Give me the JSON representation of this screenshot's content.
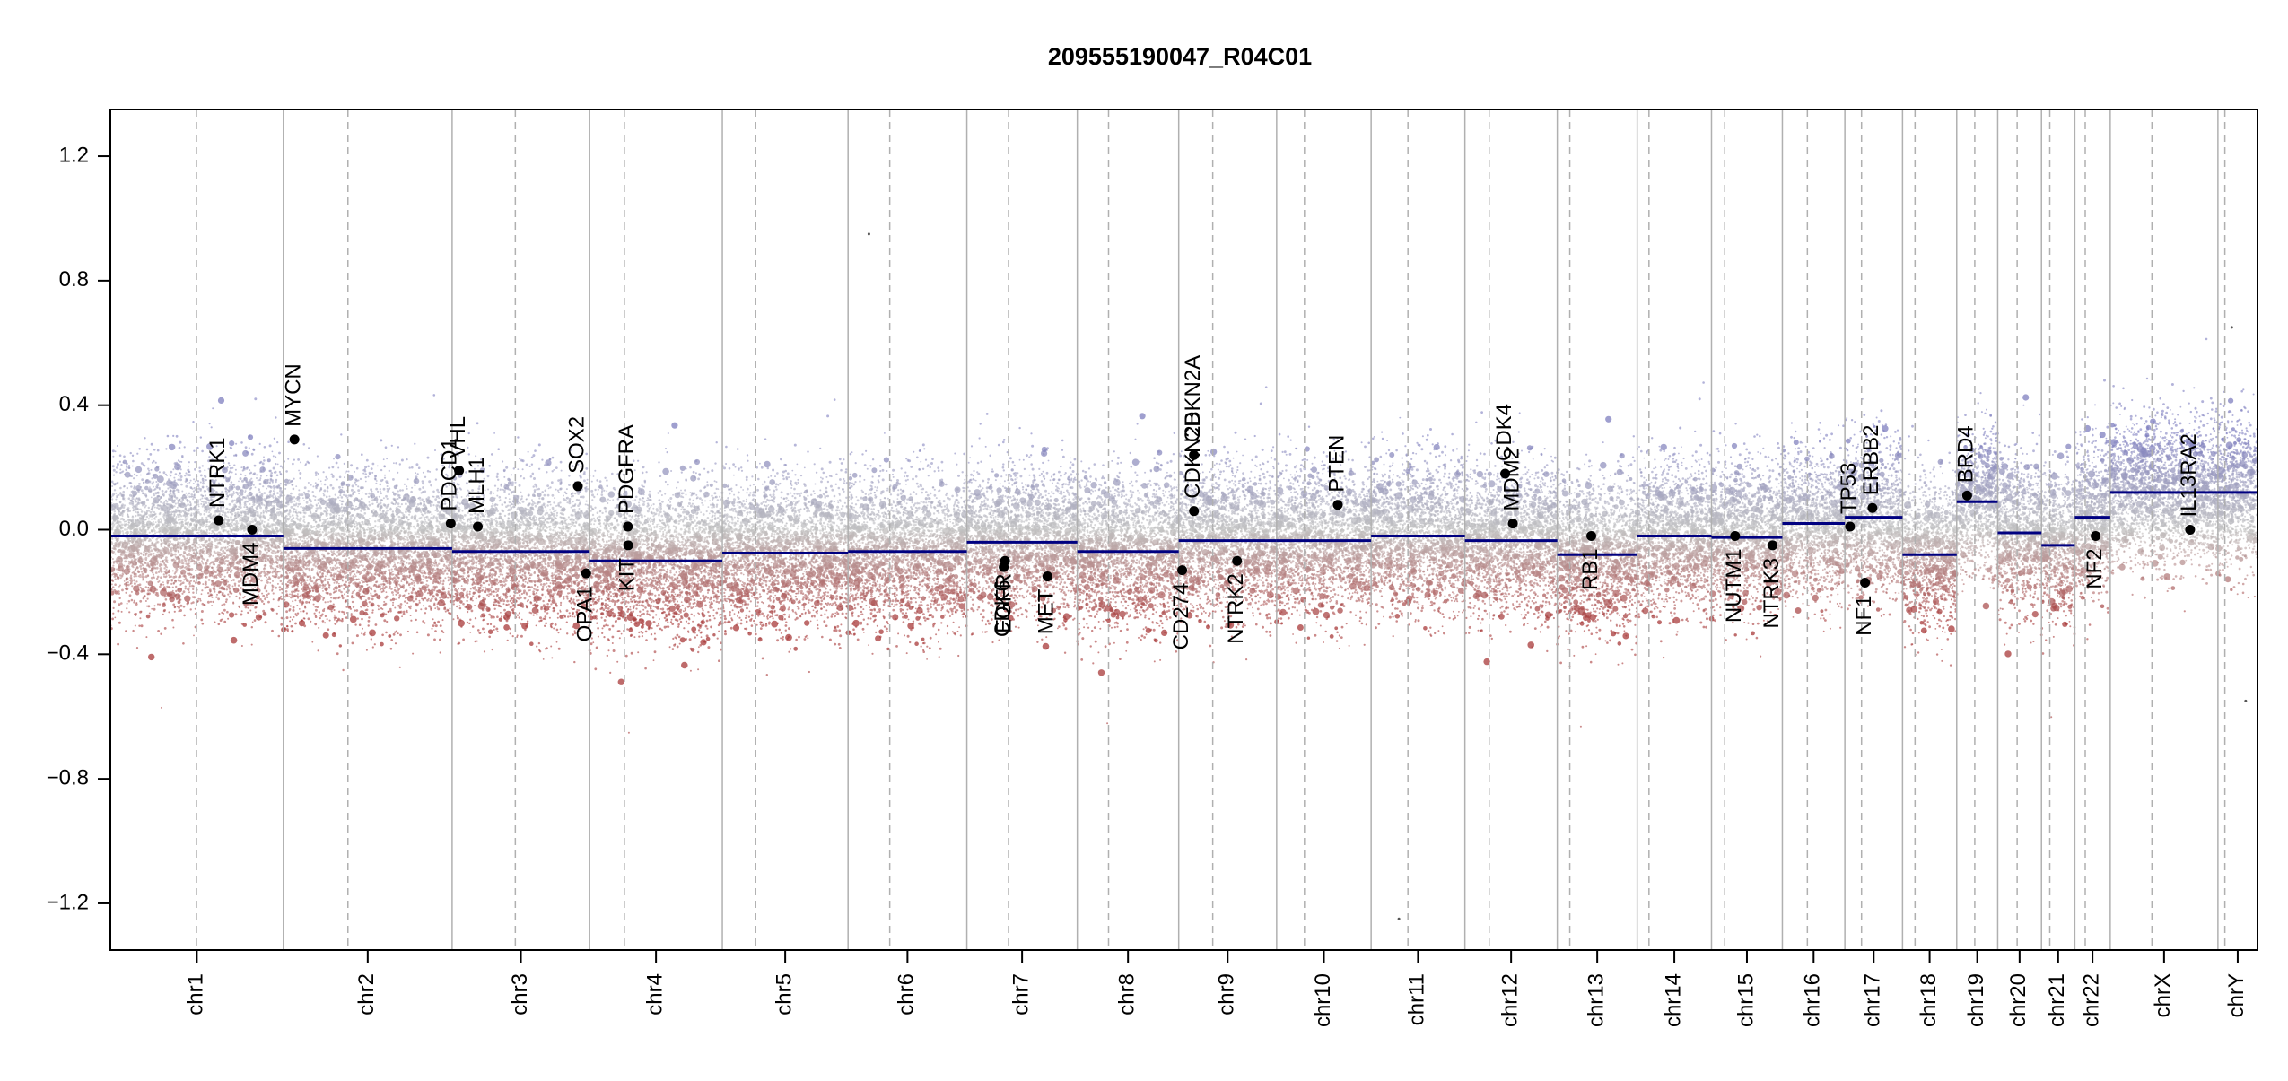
{
  "chart_data": {
    "type": "scatter",
    "title": "209555190047_R04C01",
    "xlabel": "",
    "ylabel": "",
    "ylim": [
      -1.35,
      1.35
    ],
    "yticks": [
      -1.2,
      -0.8,
      -0.4,
      0.0,
      0.4,
      0.8,
      1.2
    ],
    "ytick_labels": [
      "−1.2",
      "−0.8",
      "−0.4",
      "0.0",
      "0.4",
      "0.8",
      "1.2"
    ],
    "x_units": "Mb",
    "chromosomes": [
      {
        "name": "chr1",
        "size": 249,
        "centromere": 124
      },
      {
        "name": "chr2",
        "size": 243,
        "centromere": 93
      },
      {
        "name": "chr3",
        "size": 198,
        "centromere": 91
      },
      {
        "name": "chr4",
        "size": 191,
        "centromere": 50
      },
      {
        "name": "chr5",
        "size": 181,
        "centromere": 48
      },
      {
        "name": "chr6",
        "size": 171,
        "centromere": 60
      },
      {
        "name": "chr7",
        "size": 159,
        "centromere": 60
      },
      {
        "name": "chr8",
        "size": 146,
        "centromere": 45
      },
      {
        "name": "chr9",
        "size": 141,
        "centromere": 49
      },
      {
        "name": "chr10",
        "size": 136,
        "centromere": 40
      },
      {
        "name": "chr11",
        "size": 135,
        "centromere": 53
      },
      {
        "name": "chr12",
        "size": 133,
        "centromere": 35
      },
      {
        "name": "chr13",
        "size": 115,
        "centromere": 18
      },
      {
        "name": "chr14",
        "size": 107,
        "centromere": 17
      },
      {
        "name": "chr15",
        "size": 102,
        "centromere": 19
      },
      {
        "name": "chr16",
        "size": 90,
        "centromere": 36
      },
      {
        "name": "chr17",
        "size": 83,
        "centromere": 24
      },
      {
        "name": "chr18",
        "size": 78,
        "centromere": 18
      },
      {
        "name": "chr19",
        "size": 59,
        "centromere": 26
      },
      {
        "name": "chr20",
        "size": 63,
        "centromere": 28
      },
      {
        "name": "chr21",
        "size": 48,
        "centromere": 12
      },
      {
        "name": "chr22",
        "size": 51,
        "centromere": 15
      },
      {
        "name": "chrX",
        "size": 155,
        "centromere": 60
      },
      {
        "name": "chrY",
        "size": 57,
        "centromere": 10
      }
    ],
    "segments": [
      {
        "chr": "chr1",
        "value": -0.02
      },
      {
        "chr": "chr2",
        "value": -0.06
      },
      {
        "chr": "chr3",
        "value": -0.07
      },
      {
        "chr": "chr4",
        "value": -0.1
      },
      {
        "chr": "chr5",
        "value": -0.075
      },
      {
        "chr": "chr6",
        "value": -0.07
      },
      {
        "chr": "chr7",
        "value": -0.04
      },
      {
        "chr": "chr8",
        "value": -0.07
      },
      {
        "chr": "chr9",
        "value": -0.035
      },
      {
        "chr": "chr10",
        "value": -0.035
      },
      {
        "chr": "chr11",
        "value": -0.02
      },
      {
        "chr": "chr12",
        "value": -0.035
      },
      {
        "chr": "chr13",
        "value": -0.08
      },
      {
        "chr": "chr14",
        "value": -0.02
      },
      {
        "chr": "chr15",
        "value": -0.025
      },
      {
        "chr": "chr16",
        "value": 0.02
      },
      {
        "chr": "chr17",
        "value": 0.04
      },
      {
        "chr": "chr18",
        "value": -0.08
      },
      {
        "chr": "chr19",
        "value": 0.09
      },
      {
        "chr": "chr20",
        "value": -0.01
      },
      {
        "chr": "chr21",
        "value": -0.05
      },
      {
        "chr": "chr22",
        "value": 0.04
      },
      {
        "chr": "chrX",
        "value": 0.12
      },
      {
        "chr": "chrY",
        "value": 0.12
      }
    ],
    "genes": [
      {
        "name": "NTRK1",
        "chr": "chr1",
        "pos": 156,
        "value": 0.03,
        "label": "above"
      },
      {
        "name": "MDM4",
        "chr": "chr1",
        "pos": 204,
        "value": 0.0,
        "label": "below"
      },
      {
        "name": "MYCN",
        "chr": "chr2",
        "pos": 16,
        "value": 0.29,
        "label": "above"
      },
      {
        "name": "PDCD1",
        "chr": "chr2",
        "pos": 241,
        "value": 0.02,
        "label": "above"
      },
      {
        "name": "VHL",
        "chr": "chr3",
        "pos": 10,
        "value": 0.19,
        "label": "above"
      },
      {
        "name": "MLH1",
        "chr": "chr3",
        "pos": 37,
        "value": 0.01,
        "label": "above"
      },
      {
        "name": "SOX2",
        "chr": "chr3",
        "pos": 181,
        "value": 0.14,
        "label": "above"
      },
      {
        "name": "OPA1",
        "chr": "chr3",
        "pos": 193,
        "value": -0.14,
        "label": "below"
      },
      {
        "name": "PDGFRA",
        "chr": "chr4",
        "pos": 55,
        "value": 0.01,
        "label": "above"
      },
      {
        "name": "KIT",
        "chr": "chr4",
        "pos": 55.5,
        "value": -0.05,
        "label": "below"
      },
      {
        "name": "EGFR",
        "chr": "chr7",
        "pos": 55,
        "value": -0.1,
        "label": "below"
      },
      {
        "name": "CDK6",
        "chr": "chr7",
        "pos": 53,
        "value": -0.12,
        "label": "below"
      },
      {
        "name": "MET",
        "chr": "chr7",
        "pos": 116,
        "value": -0.15,
        "label": "below"
      },
      {
        "name": "CD274",
        "chr": "chr9",
        "pos": 5,
        "value": -0.13,
        "label": "below"
      },
      {
        "name": "CDKN2A",
        "chr": "chr9",
        "pos": 21.9,
        "value": 0.24,
        "label": "above"
      },
      {
        "name": "CDKN2B",
        "chr": "chr9",
        "pos": 22.0,
        "value": 0.06,
        "label": "above"
      },
      {
        "name": "NTRK2",
        "chr": "chr9",
        "pos": 84,
        "value": -0.1,
        "label": "below"
      },
      {
        "name": "PTEN",
        "chr": "chr10",
        "pos": 88,
        "value": 0.08,
        "label": "above"
      },
      {
        "name": "CDK4",
        "chr": "chr12",
        "pos": 58,
        "value": 0.18,
        "label": "above"
      },
      {
        "name": "MDM2",
        "chr": "chr12",
        "pos": 69,
        "value": 0.02,
        "label": "above"
      },
      {
        "name": "RB1",
        "chr": "chr13",
        "pos": 49,
        "value": -0.02,
        "label": "below"
      },
      {
        "name": "NUTM1",
        "chr": "chr15",
        "pos": 34,
        "value": -0.02,
        "label": "below"
      },
      {
        "name": "NTRK3",
        "chr": "chr15",
        "pos": 88,
        "value": -0.05,
        "label": "below"
      },
      {
        "name": "TP53",
        "chr": "chr17",
        "pos": 7.5,
        "value": 0.01,
        "label": "above"
      },
      {
        "name": "NF1",
        "chr": "chr17",
        "pos": 29,
        "value": -0.17,
        "label": "below"
      },
      {
        "name": "ERBB2",
        "chr": "chr17",
        "pos": 39.7,
        "value": 0.07,
        "label": "above"
      },
      {
        "name": "BRD4",
        "chr": "chr19",
        "pos": 15,
        "value": 0.11,
        "label": "above"
      },
      {
        "name": "NF2",
        "chr": "chr22",
        "pos": 30,
        "value": -0.02,
        "label": "below"
      },
      {
        "name": "IL13RA2",
        "chr": "chrX",
        "pos": 115,
        "value": 0.0,
        "label": "above"
      }
    ],
    "outliers": [
      {
        "chr": "chr6",
        "pos": 30,
        "value": 0.95
      },
      {
        "chr": "chrY",
        "pos": 20,
        "value": 0.65
      },
      {
        "chr": "chrY",
        "pos": 40,
        "value": -0.55
      },
      {
        "chr": "chr11",
        "pos": 40,
        "value": -1.25
      }
    ],
    "colors": {
      "gain": "#7f7fbf",
      "loss": "#a83a3a",
      "neutral": "#c0c0c0",
      "segment": "#000080",
      "chr_boundary": "#b0b0b0",
      "centromere": "#b0b0b0"
    },
    "grid": false,
    "legend": "none"
  }
}
